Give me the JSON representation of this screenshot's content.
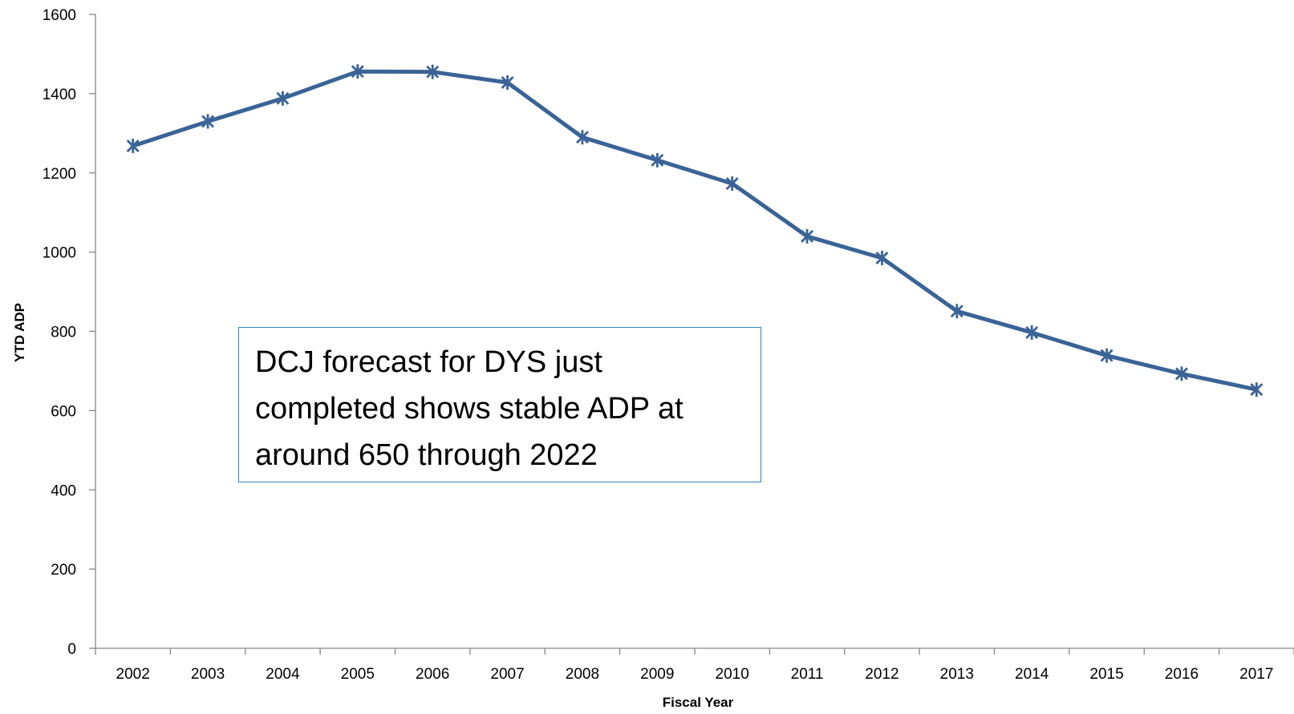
{
  "chart_data": {
    "type": "line",
    "title": "",
    "xlabel": "Fiscal Year",
    "ylabel": "YTD ADP",
    "categories": [
      "2002",
      "2003",
      "2004",
      "2005",
      "2006",
      "2007",
      "2008",
      "2009",
      "2010",
      "2011",
      "2012",
      "2013",
      "2014",
      "2015",
      "2016",
      "2017"
    ],
    "series": [
      {
        "values": [
          1268,
          1330,
          1388,
          1456,
          1455,
          1428,
          1290,
          1232,
          1173,
          1040,
          985,
          851,
          797,
          739,
          693,
          653
        ],
        "color": "#3a6396",
        "marker": "asterisk"
      }
    ],
    "ylim": [
      0,
      1600
    ],
    "yticks": [
      0,
      200,
      400,
      600,
      800,
      1000,
      1200,
      1400,
      1600
    ],
    "grid": false,
    "legend": "none"
  },
  "annotation": {
    "text": "DCJ forecast for DYS just completed shows stable ADP at around 650 through 2022",
    "border_color": "#2e86c1"
  }
}
